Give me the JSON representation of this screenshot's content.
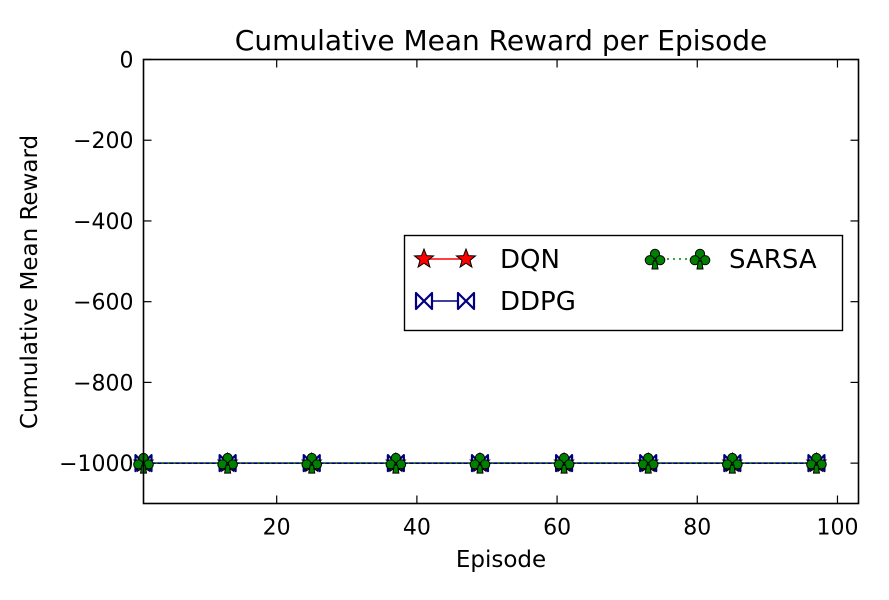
{
  "chart_data": {
    "type": "line",
    "title": "Cumulative Mean Reward per Episode",
    "xlabel": "Episode",
    "ylabel": "Cumulative Mean Reward",
    "xlim": [
      1,
      103
    ],
    "ylim": [
      -1100,
      0
    ],
    "xticks": [
      20,
      40,
      60,
      80,
      100
    ],
    "xtick_labels": [
      "20",
      "40",
      "60",
      "80",
      "100"
    ],
    "yticks": [
      0,
      -200,
      -400,
      -600,
      -800,
      -1000
    ],
    "ytick_labels": [
      "0",
      "−200",
      "−400",
      "−600",
      "−800",
      "−1000"
    ],
    "grid": false,
    "legend": {
      "placement": "center-right",
      "columns": 2
    },
    "series": [
      {
        "name": "DQN",
        "color": "#ff0000",
        "marker": "star",
        "line_style": "solid",
        "x": [
          1,
          13,
          25,
          37,
          49,
          61,
          73,
          85,
          97
        ],
        "values": [
          -1000,
          -1000,
          -1000,
          -1000,
          -1000,
          -1000,
          -1000,
          -1000,
          -1000
        ]
      },
      {
        "name": "DDPG",
        "color": "#000080",
        "marker": "bowtie",
        "line_style": "solid",
        "x": [
          1,
          13,
          25,
          37,
          49,
          61,
          73,
          85,
          97
        ],
        "values": [
          -1000,
          -1000,
          -1000,
          -1000,
          -1000,
          -1000,
          -1000,
          -1000,
          -1000
        ]
      },
      {
        "name": "SARSA",
        "color": "#008000",
        "marker": "club",
        "line_style": "dotted",
        "x": [
          1,
          13,
          25,
          37,
          49,
          61,
          73,
          85,
          97
        ],
        "values": [
          -1000,
          -1000,
          -1000,
          -1000,
          -1000,
          -1000,
          -1000,
          -1000,
          -1000
        ]
      }
    ]
  }
}
